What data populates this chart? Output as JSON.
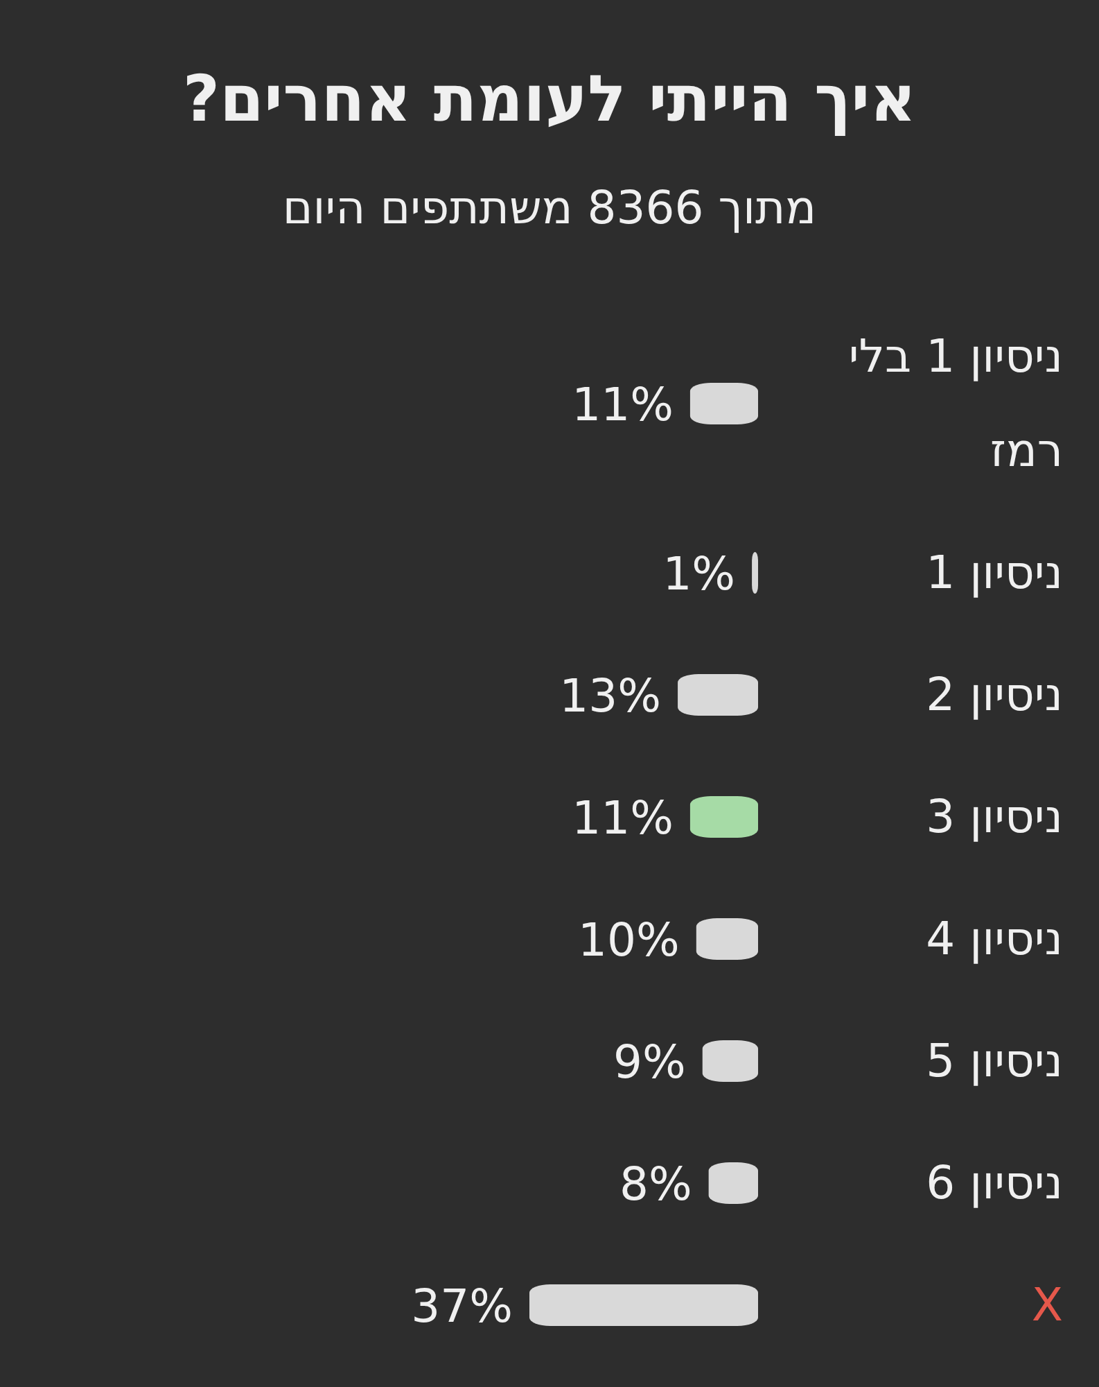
{
  "chart_data": {
    "type": "bar",
    "orientation": "horizontal",
    "title": "איך הייתי לעומת אחרים?",
    "subtitle": "מתוך 8366 משתתפים היום",
    "categories": [
      "ניסיון 1 בלי רמז",
      "ניסיון 1",
      "ניסיון 2",
      "ניסיון 3",
      "ניסיון 4",
      "ניסיון 5",
      "ניסיון 6",
      "X"
    ],
    "values": [
      11,
      1,
      13,
      11,
      10,
      9,
      8,
      37
    ],
    "value_labels": [
      "11%",
      "1%",
      "13%",
      "11%",
      "10%",
      "9%",
      "8%",
      "37%"
    ],
    "colors": [
      "#d9d9d9",
      "#d9d9d9",
      "#d9d9d9",
      "#a6dba6",
      "#d9d9d9",
      "#d9d9d9",
      "#d9d9d9",
      "#d9d9d9"
    ]
  }
}
